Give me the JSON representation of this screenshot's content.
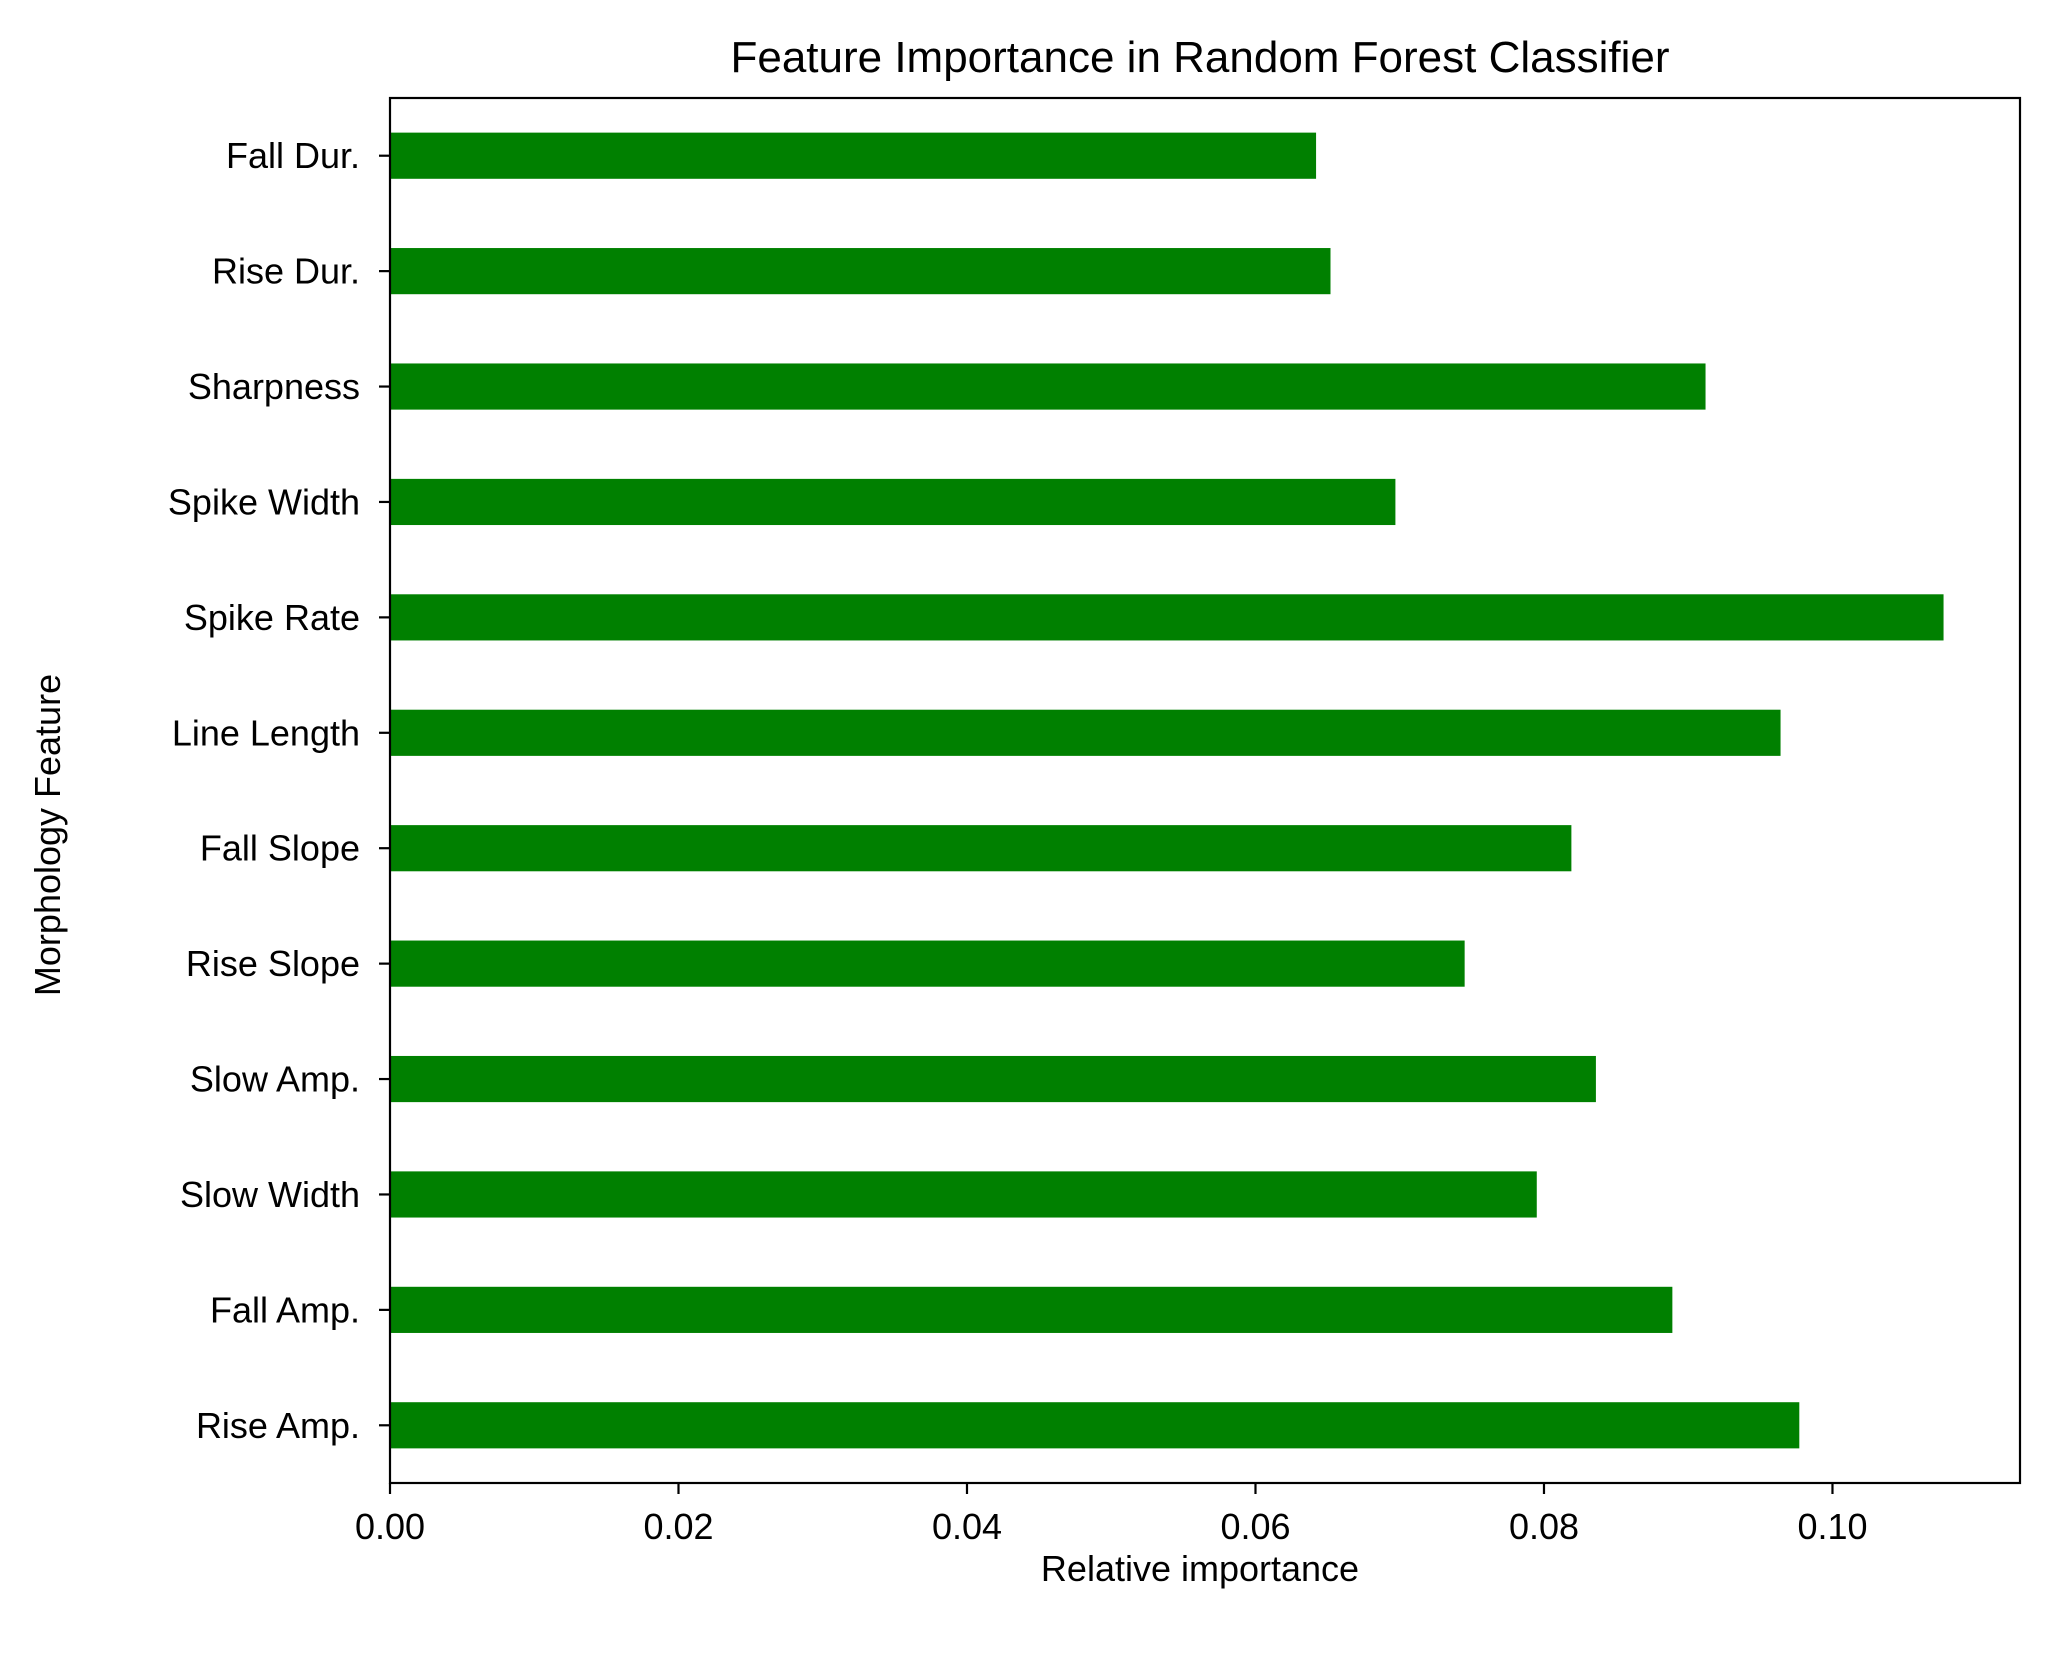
{
  "chart_data": {
    "type": "bar",
    "orientation": "horizontal",
    "title": "Feature Importance in Random Forest Classifier",
    "xlabel": "Relative importance",
    "ylabel": "Morphology Feature",
    "categories": [
      "Rise Amp.",
      "Fall Amp.",
      "Slow Width",
      "Slow Amp.",
      "Rise Slope",
      "Fall Slope",
      "Line Length",
      "Spike Rate",
      "Spike Width",
      "Sharpness",
      "Rise Dur.",
      "Fall Dur."
    ],
    "values": [
      0.0977,
      0.0889,
      0.0795,
      0.0836,
      0.0745,
      0.0819,
      0.0964,
      0.1077,
      0.0697,
      0.0912,
      0.0652,
      0.0642
    ],
    "xlim": [
      0,
      0.113
    ],
    "xticks": [
      "0.00",
      "0.02",
      "0.04",
      "0.06",
      "0.08",
      "0.10"
    ],
    "xtick_values": [
      0,
      0.02,
      0.04,
      0.06,
      0.08,
      0.1
    ],
    "bar_color": "#008000",
    "grid": false,
    "legend": "none"
  }
}
